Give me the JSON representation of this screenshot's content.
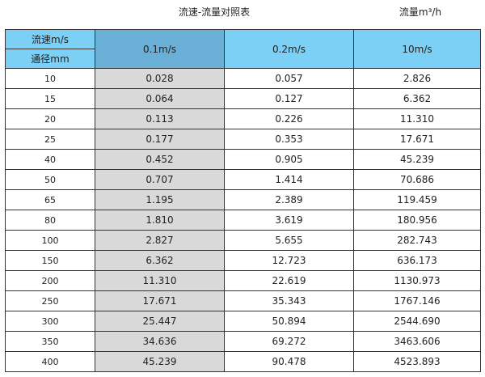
{
  "title": "流速-流量对照表",
  "unit": "流量m³/h",
  "colors": {
    "header": "#7ccff5",
    "header_selected": "#6ab0d6",
    "highlight_column": "#d9d9d9"
  },
  "header": {
    "velocity_label": "流速m/s",
    "diameter_label": "通径mm",
    "columns": [
      "0.1m/s",
      "0.2m/s",
      "10m/s"
    ]
  },
  "rows": [
    [
      "10",
      "0.028",
      "0.057",
      "2.826"
    ],
    [
      "15",
      "0.064",
      "0.127",
      "6.362"
    ],
    [
      "20",
      "0.113",
      "0.226",
      "11.310"
    ],
    [
      "25",
      "0.177",
      "0.353",
      "17.671"
    ],
    [
      "40",
      "0.452",
      "0.905",
      "45.239"
    ],
    [
      "50",
      "0.707",
      "1.414",
      "70.686"
    ],
    [
      "65",
      "1.195",
      "2.389",
      "119.459"
    ],
    [
      "80",
      "1.810",
      "3.619",
      "180.956"
    ],
    [
      "100",
      "2.827",
      "5.655",
      "282.743"
    ],
    [
      "150",
      "6.362",
      "12.723",
      "636.173"
    ],
    [
      "200",
      "11.310",
      "22.619",
      "1130.973"
    ],
    [
      "250",
      "17.671",
      "35.343",
      "1767.146"
    ],
    [
      "300",
      "25.447",
      "50.894",
      "2544.690"
    ],
    [
      "350",
      "34.636",
      "69.272",
      "3463.606"
    ],
    [
      "400",
      "45.239",
      "90.478",
      "4523.893"
    ]
  ]
}
